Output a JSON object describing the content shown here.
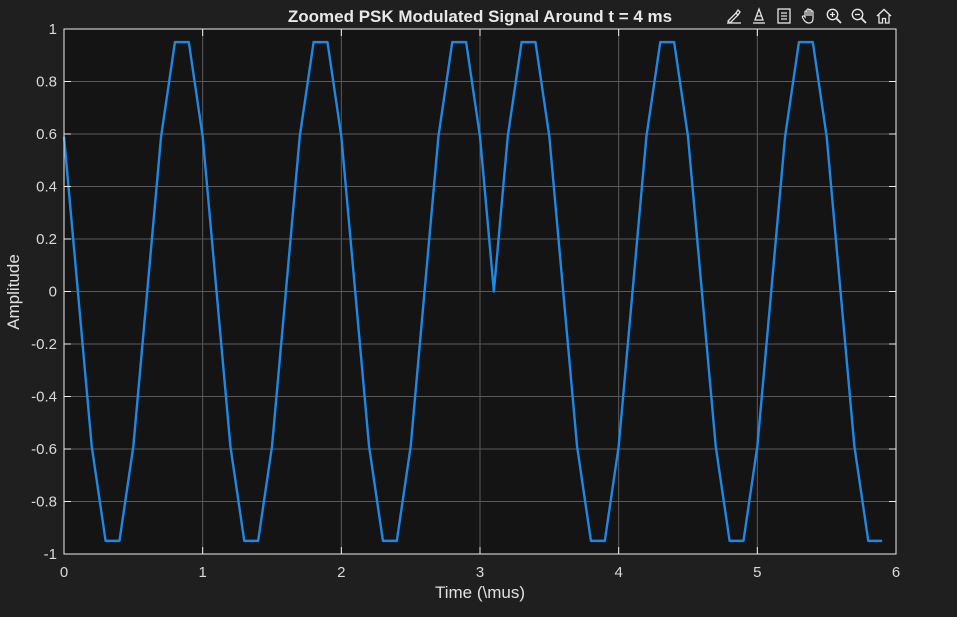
{
  "toolbar": {
    "tools": [
      {
        "name": "brush-icon"
      },
      {
        "name": "data-tips-icon"
      },
      {
        "name": "restore-view-icon"
      },
      {
        "name": "pan-icon"
      },
      {
        "name": "zoom-in-icon"
      },
      {
        "name": "zoom-out-icon"
      },
      {
        "name": "home-icon"
      }
    ]
  },
  "colors": {
    "figure_bg": "#1f1f1f",
    "axes_bg": "#141414",
    "grid": "#5a5a5a",
    "axis_line": "#ececec",
    "line": "#1e88e5"
  },
  "chart_data": {
    "type": "line",
    "title": "Zoomed PSK Modulated Signal Around t = 4 ms",
    "xlabel": "Time  (\\mus)",
    "ylabel": "Amplitude",
    "xlim": [
      0,
      6
    ],
    "ylim": [
      -1,
      1
    ],
    "xticks": [
      0,
      1,
      2,
      3,
      4,
      5,
      6
    ],
    "xtick_labels": [
      "0",
      "1",
      "2",
      "3",
      "4",
      "5",
      "6"
    ],
    "yticks": [
      -1,
      -0.8,
      -0.6,
      -0.4,
      -0.2,
      0,
      0.2,
      0.4,
      0.6,
      0.8,
      1
    ],
    "ytick_labels": [
      "-1",
      "-0.8",
      "-0.6",
      "-0.4",
      "-0.2",
      "0",
      "0.2",
      "0.4",
      "0.6",
      "0.8",
      "1"
    ],
    "grid": true,
    "series": [
      {
        "x": [
          0,
          0.1,
          0.2,
          0.3,
          0.4,
          0.5,
          0.6,
          0.7,
          0.8,
          0.9,
          1.0,
          1.1,
          1.2,
          1.3,
          1.4,
          1.5,
          1.6,
          1.7,
          1.8,
          1.9,
          2.0,
          2.1,
          2.2,
          2.3,
          2.4,
          2.5,
          2.6,
          2.7,
          2.8,
          2.9,
          3.0,
          3.1,
          3.2,
          3.3,
          3.4,
          3.5,
          3.6,
          3.7,
          3.8,
          3.9,
          4.0,
          4.1,
          4.2,
          4.3,
          4.4,
          4.5,
          4.6,
          4.7,
          4.8,
          4.9,
          5.0,
          5.1,
          5.2,
          5.3,
          5.4,
          5.5,
          5.6,
          5.7,
          5.8,
          5.9
        ],
        "y": [
          0.59,
          0,
          -0.59,
          -0.95,
          -0.95,
          -0.59,
          0,
          0.59,
          0.95,
          0.95,
          0.59,
          0,
          -0.59,
          -0.95,
          -0.95,
          -0.59,
          0,
          0.59,
          0.95,
          0.95,
          0.59,
          0,
          -0.59,
          -0.95,
          -0.95,
          -0.59,
          0,
          0.59,
          0.95,
          0.95,
          0.59,
          0,
          0.59,
          0.95,
          0.95,
          0.59,
          0,
          -0.59,
          -0.95,
          -0.95,
          -0.59,
          0,
          0.59,
          0.95,
          0.95,
          0.59,
          0,
          -0.59,
          -0.95,
          -0.95,
          -0.59,
          0,
          0.59,
          0.95,
          0.95,
          0.59,
          0,
          -0.59,
          -0.95,
          -0.95
        ]
      }
    ]
  }
}
